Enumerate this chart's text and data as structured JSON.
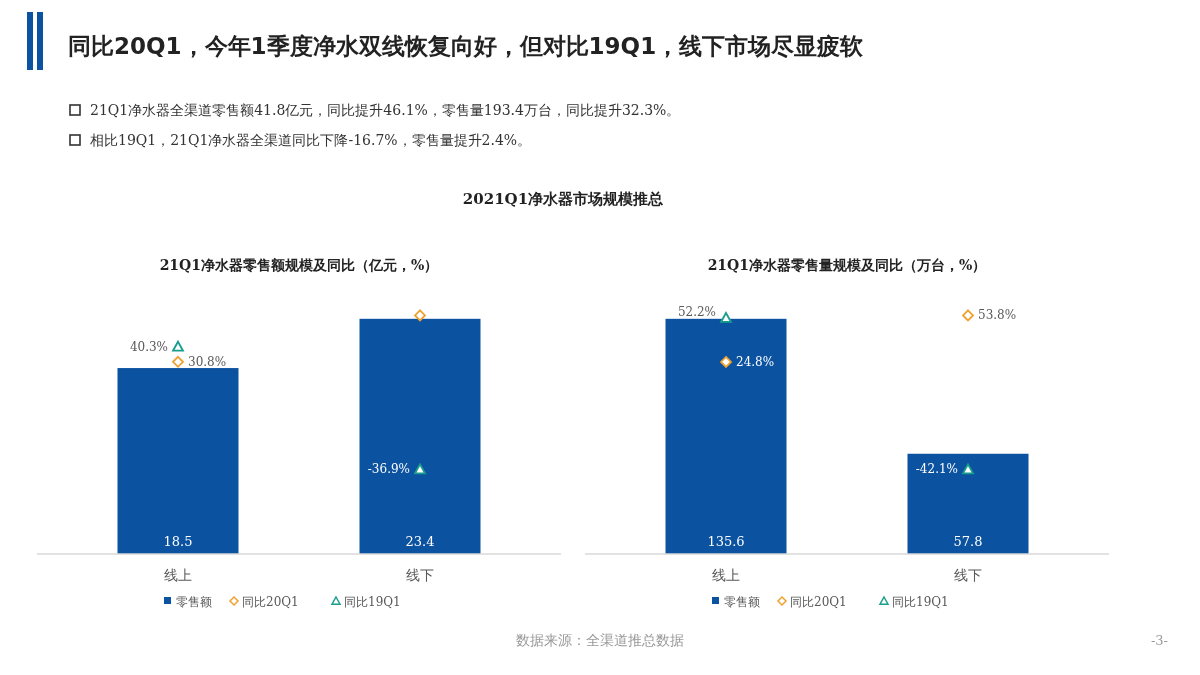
{
  "chart_data": [
    {
      "type": "other",
      "title": "同比20Q1，今年1季度净水双线恢复向好，但对比19Q1，线下市场尽显疲软",
      "annotations": [
        "21Q1净水器全渠道零售额41.8亿元，同比提升46.1%，零售量193.4万台，同比提升32.3%。",
        "相比19Q1，21Q1净水器全渠道同比下降-16.7%，零售量提升2.4%。",
        "2021Q1净水器市场规模推总",
        "数据来源：全渠道推总数据",
        "-3-"
      ]
    },
    {
      "type": "bar",
      "title": "21Q1净水器零售额规模及同比（亿元，%）",
      "categories": [
        "线上",
        "线下"
      ],
      "tick_labels": "x",
      "legend": "bottom",
      "series": [
        {
          "name": "零售额",
          "type": "bar",
          "color": "#0b52a0",
          "values": [
            18.5,
            23.4
          ],
          "value_labels": [
            "18.5",
            "23.4"
          ]
        },
        {
          "name": "同比20Q1",
          "type": "scatter",
          "axis": "y2",
          "marker": "diamond",
          "color": "#f0a030",
          "values": [
            30.8,
            60
          ],
          "value_labels": [
            "30.8%",
            null
          ]
        },
        {
          "name": "同比19Q1",
          "type": "scatter",
          "axis": "y2",
          "marker": "triangle",
          "color": "#1a9e8c",
          "values": [
            40.3,
            -36.9
          ],
          "value_labels": [
            "40.3%",
            "-36.9%"
          ]
        }
      ]
    },
    {
      "type": "bar",
      "title": "21Q1净水器零售量规模及同比（万台，%）",
      "categories": [
        "线上",
        "线下"
      ],
      "tick_labels": "x",
      "legend": "bottom",
      "series": [
        {
          "name": "零售额",
          "type": "bar",
          "color": "#0b52a0",
          "values": [
            135.6,
            57.8
          ],
          "value_labels": [
            "135.6",
            "57.8"
          ]
        },
        {
          "name": "同比20Q1",
          "type": "scatter",
          "axis": "y2",
          "marker": "diamond",
          "color": "#f0a030",
          "values": [
            24.8,
            53.8
          ],
          "value_labels": [
            "24.8%",
            "53.8%"
          ]
        },
        {
          "name": "同比19Q1",
          "type": "scatter",
          "axis": "y2",
          "marker": "triangle",
          "color": "#1a9e8c",
          "values": [
            52.2,
            -42.1
          ],
          "value_labels": [
            "52.2%",
            "-42.1%"
          ]
        }
      ]
    }
  ]
}
